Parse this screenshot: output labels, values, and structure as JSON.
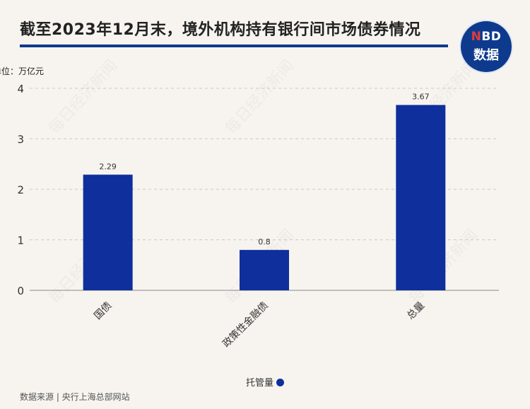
{
  "header": {
    "title": "截至2023年12月末，境外机构持有银行间市场债券情况",
    "logo_top": "NBD",
    "logo_bottom": "数据"
  },
  "unit_label": "单位：万亿元",
  "watermark": "每日经济新闻",
  "legend": {
    "label": "托管量"
  },
  "source": "数据来源 | 央行上海总部网站",
  "colors": {
    "bar": "#0e2f9c",
    "rule": "#0d3a8c",
    "logo": "#0e3a8e"
  },
  "chart_data": {
    "type": "bar",
    "title": "截至2023年12月末，境外机构持有银行间市场债券情况",
    "categories": [
      "国债",
      "政策性金融债",
      "总量"
    ],
    "series": [
      {
        "name": "托管量",
        "values": [
          2.29,
          0.8,
          3.67
        ]
      }
    ],
    "data_labels": [
      "2.29",
      "0.8",
      "3.67"
    ],
    "ylabel": "单位：万亿元",
    "ylim": [
      0,
      4
    ],
    "yticks": [
      0,
      1,
      2,
      3,
      4
    ],
    "grid": true,
    "legend_position": "bottom"
  }
}
